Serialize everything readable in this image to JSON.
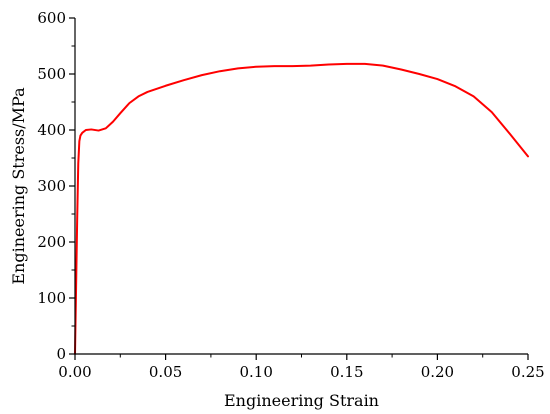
{
  "chart_data": {
    "type": "line",
    "title": "",
    "xlabel": "Engineering Strain",
    "ylabel": "Engineering Stress/MPa",
    "xlim": [
      0,
      0.25
    ],
    "ylim": [
      0,
      600
    ],
    "grid": false,
    "legend": "none",
    "x_ticks": [
      0,
      0.05,
      0.1,
      0.15,
      0.2,
      0.25
    ],
    "x_tick_labels": [
      "0.00",
      "0.05",
      "0.10",
      "0.15",
      "0.20",
      "0.25"
    ],
    "y_ticks": [
      0,
      100,
      200,
      300,
      400,
      500,
      600
    ],
    "y_tick_labels": [
      "0",
      "100",
      "200",
      "300",
      "400",
      "500",
      "600"
    ],
    "series": [
      {
        "color": "#ff0000",
        "x": [
          0,
          0.0006,
          0.0012,
          0.0018,
          0.0024,
          0.003,
          0.004,
          0.006,
          0.009,
          0.013,
          0.017,
          0.021,
          0.025,
          0.03,
          0.035,
          0.04,
          0.05,
          0.06,
          0.07,
          0.08,
          0.09,
          0.1,
          0.11,
          0.12,
          0.13,
          0.14,
          0.15,
          0.16,
          0.17,
          0.18,
          0.19,
          0.2,
          0.21,
          0.22,
          0.23,
          0.24,
          0.25
        ],
        "y": [
          0,
          120,
          240,
          340,
          380,
          390,
          395,
          400,
          401,
          399,
          403,
          415,
          430,
          448,
          460,
          468,
          479,
          489,
          498,
          505,
          510,
          513,
          514,
          514,
          515,
          517,
          518,
          518,
          515,
          508,
          500,
          491,
          478,
          460,
          432,
          393,
          353
        ]
      }
    ]
  }
}
